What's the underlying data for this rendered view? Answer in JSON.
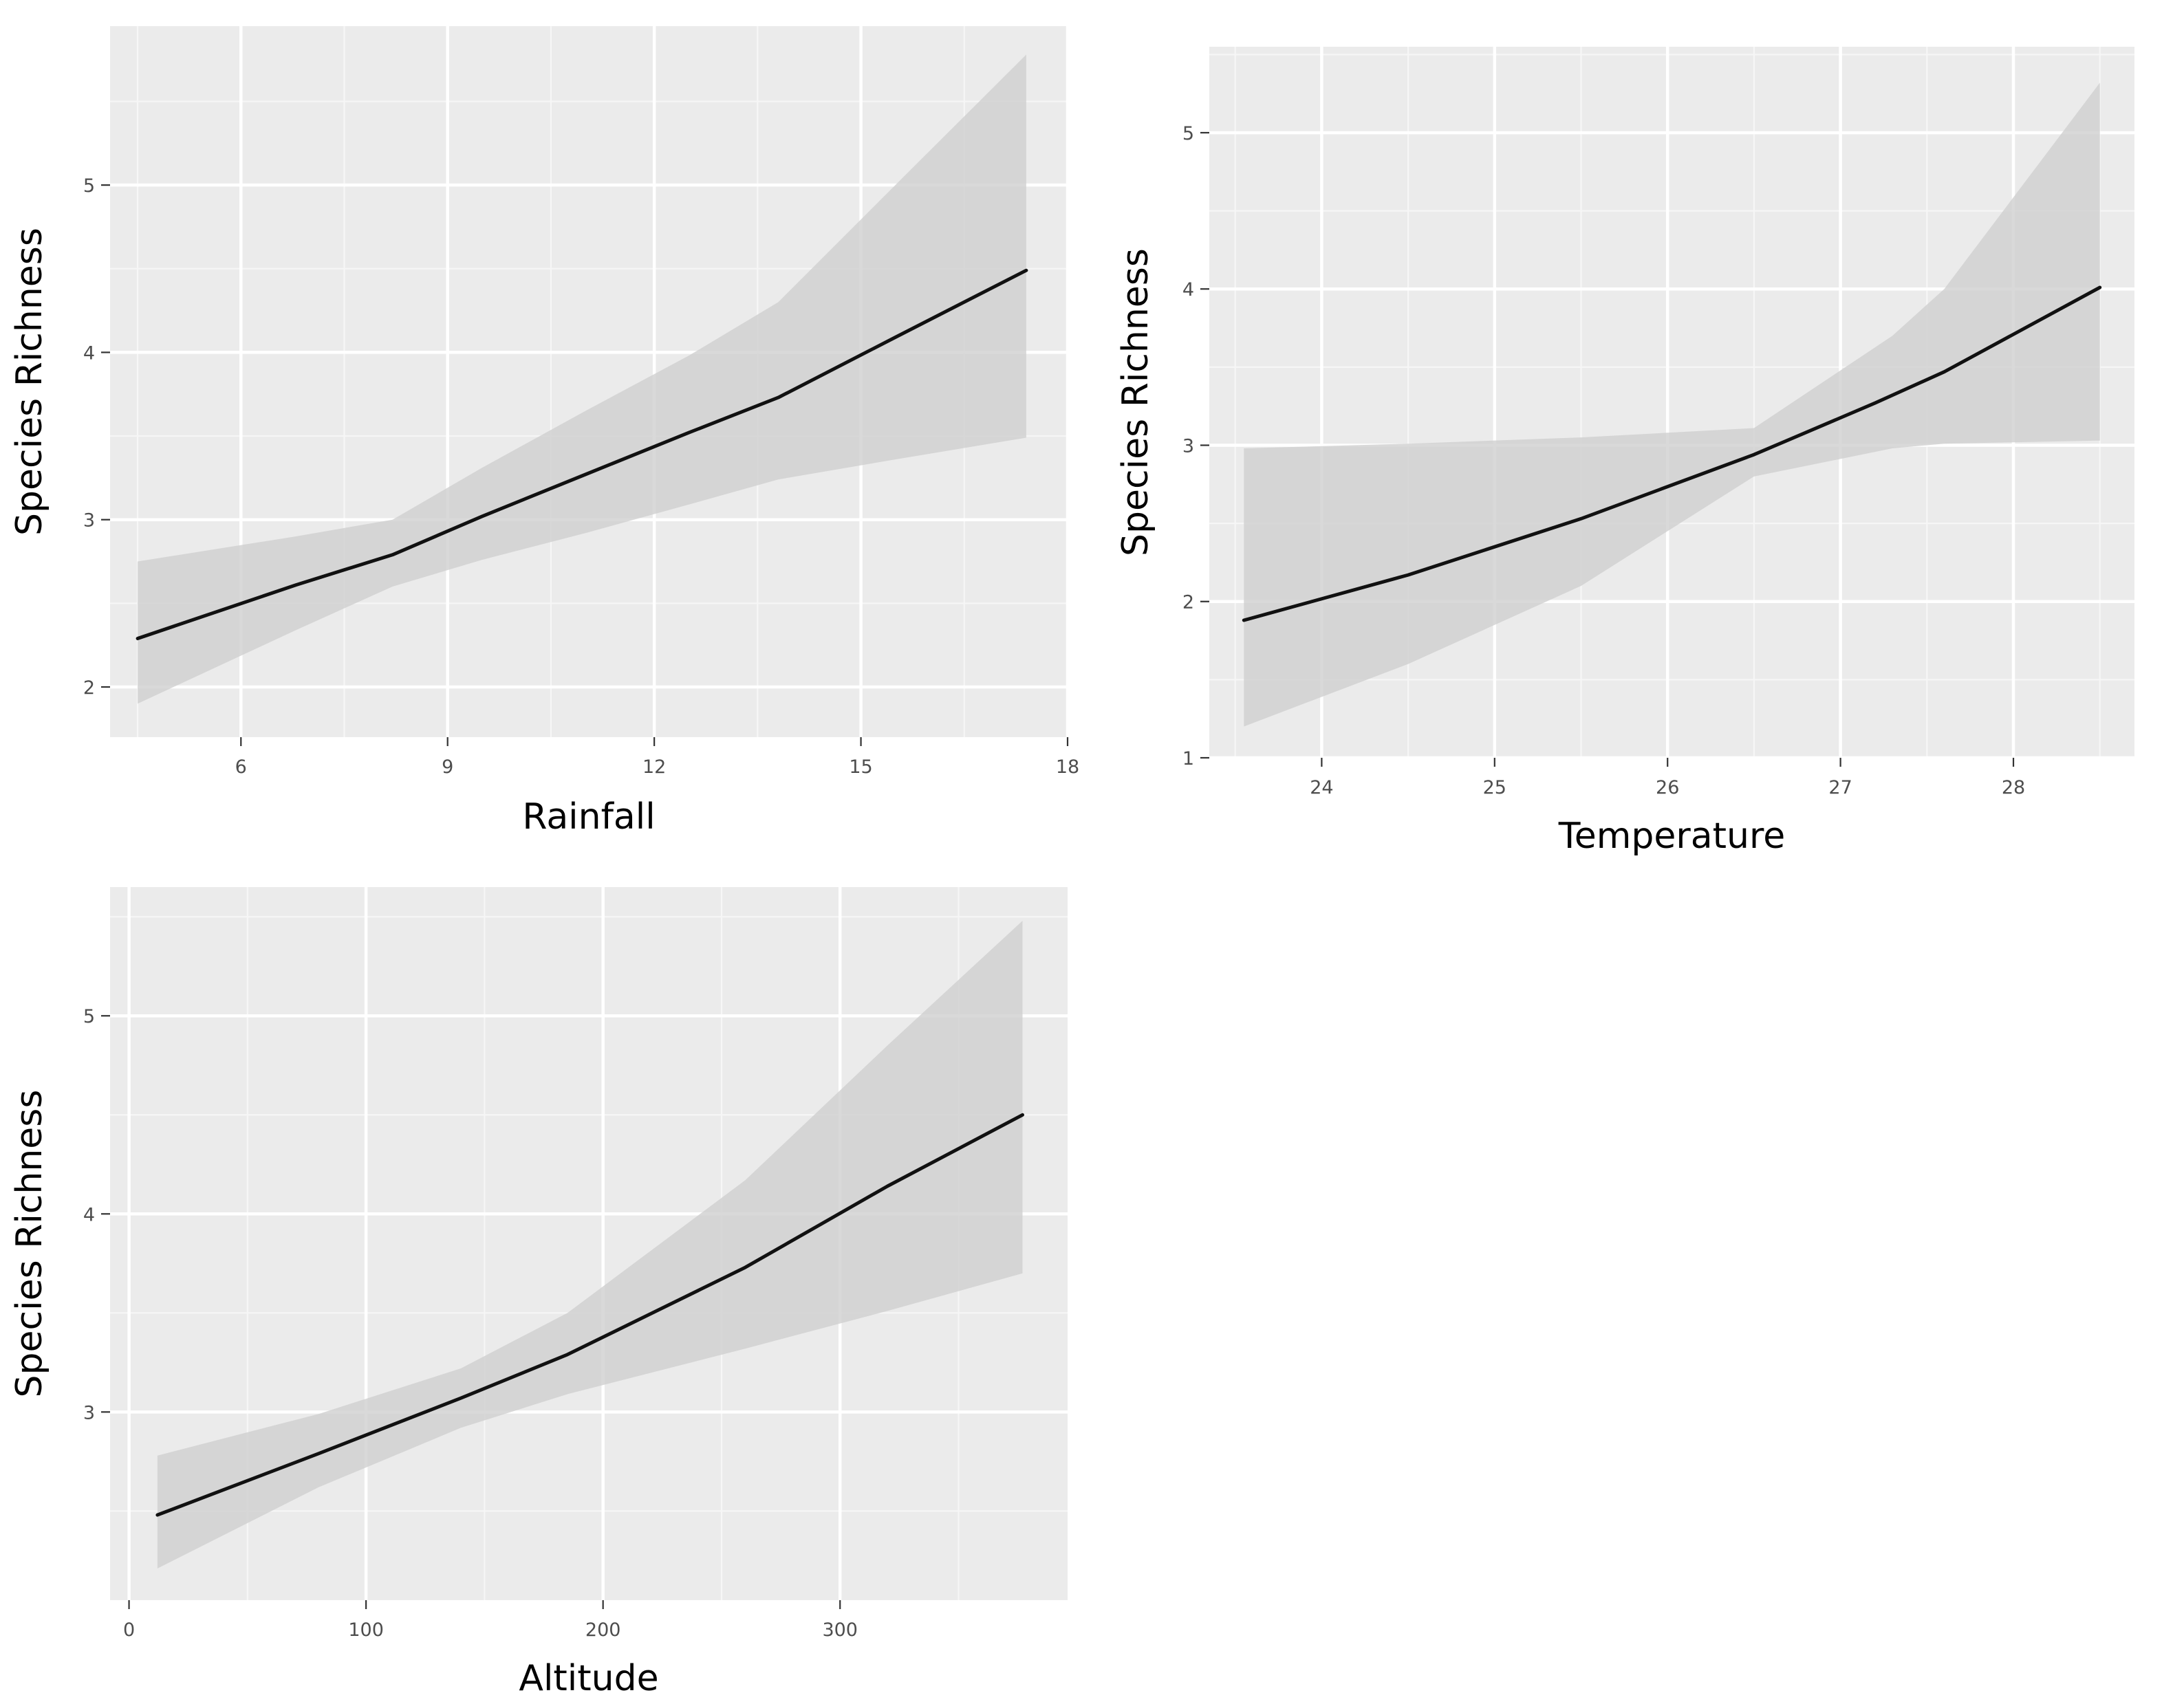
{
  "chart_data": [
    {
      "type": "line",
      "title": "",
      "xlabel": "Rainfall",
      "ylabel": "Species Richness",
      "xlim": [
        4.1,
        18
      ],
      "ylim": [
        1.7,
        5.95
      ],
      "x_ticks": [
        6,
        9,
        12,
        15,
        18
      ],
      "y_ticks": [
        2,
        3,
        4,
        5
      ],
      "grid": true,
      "series": [
        {
          "name": "fit",
          "x": [
            4.5,
            6.8,
            8.2,
            9.5,
            11,
            12.5,
            13.8,
            15.5,
            17.4
          ],
          "y": [
            2.29,
            2.61,
            2.79,
            3.02,
            3.27,
            3.52,
            3.73,
            4.09,
            4.49
          ]
        },
        {
          "name": "confidence band upper",
          "x": [
            4.5,
            6.8,
            8.2,
            9.5,
            11,
            12.5,
            13.8,
            15.5,
            17.4
          ],
          "y": [
            2.75,
            2.9,
            3.0,
            3.31,
            3.65,
            3.98,
            4.3,
            5.0,
            5.78
          ]
        },
        {
          "name": "confidence band lower",
          "x": [
            4.5,
            6.8,
            8.2,
            9.5,
            11,
            12.5,
            13.8,
            15.5,
            17.4
          ],
          "y": [
            1.9,
            2.34,
            2.6,
            2.76,
            2.92,
            3.09,
            3.24,
            3.36,
            3.49
          ]
        }
      ]
    },
    {
      "type": "line",
      "title": "",
      "xlabel": "Temperature",
      "ylabel": "Species Richness",
      "xlim": [
        23.35,
        28.7
      ],
      "ylim": [
        1.0,
        5.55
      ],
      "x_ticks": [
        24,
        25,
        26,
        27,
        28
      ],
      "y_ticks": [
        1,
        2,
        3,
        4,
        5
      ],
      "grid": true,
      "series": [
        {
          "name": "fit",
          "x": [
            23.55,
            24.5,
            25.5,
            26.5,
            27.2,
            27.6,
            28.5
          ],
          "y": [
            1.88,
            2.17,
            2.53,
            2.94,
            3.27,
            3.47,
            4.01
          ]
        },
        {
          "name": "confidence band upper",
          "x": [
            23.55,
            24.5,
            25.5,
            26.5,
            27.3,
            27.6,
            28.5
          ],
          "y": [
            2.98,
            3.01,
            3.05,
            3.11,
            3.7,
            4.0,
            5.32
          ]
        },
        {
          "name": "confidence band lower",
          "x": [
            23.55,
            24.5,
            25.5,
            26.5,
            27.3,
            27.6,
            28.5
          ],
          "y": [
            1.2,
            1.6,
            2.1,
            2.8,
            2.98,
            3.01,
            3.03
          ]
        }
      ]
    },
    {
      "type": "line",
      "title": "",
      "xlabel": "Altitude",
      "ylabel": "Species Richness",
      "xlim": [
        -8,
        396
      ],
      "ylim": [
        2.05,
        5.65
      ],
      "x_ticks": [
        0,
        100,
        200,
        300
      ],
      "y_ticks": [
        3,
        4,
        5
      ],
      "grid": true,
      "series": [
        {
          "name": "fit",
          "x": [
            12,
            80,
            140,
            185,
            260,
            320,
            377
          ],
          "y": [
            2.48,
            2.79,
            3.07,
            3.29,
            3.73,
            4.14,
            4.5
          ]
        },
        {
          "name": "confidence band upper",
          "x": [
            12,
            80,
            140,
            185,
            260,
            320,
            377
          ],
          "y": [
            2.78,
            2.99,
            3.22,
            3.5,
            4.17,
            4.85,
            5.48
          ]
        },
        {
          "name": "confidence band lower",
          "x": [
            12,
            80,
            140,
            185,
            260,
            320,
            377
          ],
          "y": [
            2.21,
            2.62,
            2.92,
            3.09,
            3.32,
            3.51,
            3.7
          ]
        }
      ]
    }
  ]
}
